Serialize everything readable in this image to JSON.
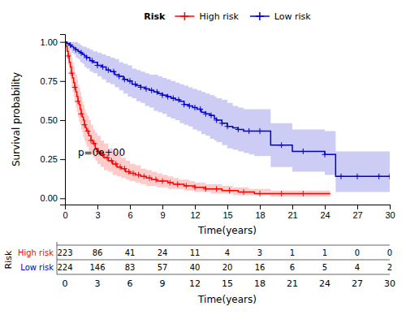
{
  "chart_data": {
    "type": "step",
    "x_label": "Time(years)",
    "y_label": "Survival probability",
    "xlim": [
      0,
      30
    ],
    "ylim": [
      -0.04,
      1.05
    ],
    "xticks": [
      0,
      3,
      6,
      9,
      12,
      15,
      18,
      21,
      24,
      27,
      30
    ],
    "yticks": [
      {
        "value": 0.0,
        "label": "0.00"
      },
      {
        "value": 0.25,
        "label": "0.25"
      },
      {
        "value": 0.5,
        "label": "0.50"
      },
      {
        "value": 0.75,
        "label": "0.75"
      },
      {
        "value": 1.0,
        "label": "1.00"
      }
    ],
    "grid": false,
    "legend": "top",
    "legend_title": "Risk",
    "series": [
      {
        "name": "High risk",
        "color": "#FF0000",
        "marker": "plus",
        "x": [
          0.0,
          0.1,
          0.2,
          0.3,
          0.4,
          0.5,
          0.6,
          0.7,
          0.8,
          0.9,
          1.0,
          1.1,
          1.2,
          1.3,
          1.4,
          1.5,
          1.6,
          1.7,
          1.8,
          1.9,
          2.0,
          2.2,
          2.4,
          2.6,
          2.8,
          3.0,
          3.3,
          3.6,
          4.0,
          4.4,
          4.8,
          5.2,
          5.6,
          6.0,
          6.5,
          7.0,
          7.5,
          8.0,
          8.5,
          9.0,
          9.5,
          10.0,
          10.5,
          11.0,
          11.5,
          12.0,
          12.5,
          13.0,
          13.5,
          14.0,
          14.5,
          15.0,
          15.5,
          16.0,
          16.5,
          17.0,
          17.5,
          18.0,
          19.0,
          20.0,
          21.0,
          22.0,
          23.0,
          24.0,
          24.5
        ],
        "values": [
          1.0,
          0.97,
          0.94,
          0.91,
          0.87,
          0.84,
          0.8,
          0.77,
          0.74,
          0.71,
          0.68,
          0.65,
          0.62,
          0.6,
          0.57,
          0.54,
          0.52,
          0.5,
          0.47,
          0.45,
          0.43,
          0.4,
          0.37,
          0.35,
          0.32,
          0.3,
          0.28,
          0.26,
          0.24,
          0.22,
          0.2,
          0.19,
          0.17,
          0.16,
          0.15,
          0.14,
          0.13,
          0.12,
          0.11,
          0.11,
          0.1,
          0.09,
          0.09,
          0.08,
          0.08,
          0.07,
          0.07,
          0.06,
          0.06,
          0.06,
          0.05,
          0.05,
          0.05,
          0.04,
          0.04,
          0.04,
          0.03,
          0.03,
          0.03,
          0.03,
          0.03,
          0.03,
          0.03,
          0.03,
          0.03
        ],
        "lower": [
          1.0,
          0.94,
          0.89,
          0.85,
          0.8,
          0.76,
          0.72,
          0.68,
          0.65,
          0.61,
          0.58,
          0.55,
          0.52,
          0.49,
          0.47,
          0.44,
          0.42,
          0.39,
          0.37,
          0.35,
          0.33,
          0.3,
          0.28,
          0.26,
          0.24,
          0.22,
          0.2,
          0.18,
          0.17,
          0.15,
          0.14,
          0.13,
          0.12,
          0.11,
          0.1,
          0.09,
          0.08,
          0.08,
          0.07,
          0.07,
          0.06,
          0.06,
          0.06,
          0.05,
          0.05,
          0.04,
          0.04,
          0.04,
          0.03,
          0.03,
          0.03,
          0.03,
          0.02,
          0.02,
          0.02,
          0.02,
          0.02,
          0.02,
          0.01,
          0.01,
          0.01,
          0.01,
          0.01,
          0.01,
          0.01
        ],
        "upper": [
          1.0,
          1.0,
          0.99,
          0.97,
          0.95,
          0.93,
          0.9,
          0.87,
          0.84,
          0.81,
          0.79,
          0.76,
          0.73,
          0.71,
          0.68,
          0.65,
          0.62,
          0.6,
          0.57,
          0.55,
          0.53,
          0.5,
          0.47,
          0.44,
          0.42,
          0.4,
          0.37,
          0.35,
          0.32,
          0.3,
          0.28,
          0.26,
          0.24,
          0.22,
          0.21,
          0.19,
          0.18,
          0.17,
          0.16,
          0.15,
          0.14,
          0.13,
          0.12,
          0.12,
          0.11,
          0.1,
          0.1,
          0.09,
          0.09,
          0.09,
          0.08,
          0.08,
          0.07,
          0.07,
          0.07,
          0.06,
          0.06,
          0.06,
          0.05,
          0.05,
          0.05,
          0.05,
          0.05,
          0.05,
          0.05
        ],
        "censor_x": [
          0.3,
          0.6,
          0.9,
          1.2,
          1.5,
          1.8,
          2.1,
          2.4,
          2.7,
          3.1,
          3.5,
          3.9,
          4.3,
          4.7,
          5.1,
          5.5,
          5.9,
          6.3,
          6.8,
          7.3,
          7.8,
          8.4,
          9.0,
          9.7,
          10.4,
          11.2,
          12.0,
          13.0,
          14.0,
          15.2,
          16.5,
          18.0,
          20.0,
          22.0
        ],
        "censor_y": [
          0.91,
          0.8,
          0.71,
          0.62,
          0.54,
          0.47,
          0.43,
          0.37,
          0.35,
          0.3,
          0.28,
          0.26,
          0.24,
          0.22,
          0.2,
          0.19,
          0.17,
          0.16,
          0.15,
          0.14,
          0.13,
          0.12,
          0.11,
          0.1,
          0.09,
          0.08,
          0.07,
          0.06,
          0.06,
          0.05,
          0.04,
          0.03,
          0.03,
          0.03
        ]
      },
      {
        "name": "Low risk",
        "color": "#0000CD",
        "marker": "plus",
        "x": [
          0.0,
          0.2,
          0.4,
          0.6,
          0.8,
          1.0,
          1.2,
          1.4,
          1.6,
          1.8,
          2.0,
          2.3,
          2.6,
          3.0,
          3.4,
          3.8,
          4.2,
          4.6,
          5.0,
          5.4,
          5.8,
          6.2,
          6.6,
          7.0,
          7.4,
          7.8,
          8.2,
          8.6,
          9.0,
          9.4,
          9.8,
          10.2,
          10.6,
          11.0,
          11.4,
          11.8,
          12.2,
          12.6,
          13.0,
          13.4,
          13.8,
          14.0,
          14.5,
          15.0,
          15.5,
          16.0,
          16.5,
          17.0,
          17.5,
          18.0,
          19.0,
          20.0,
          21.0,
          22.0,
          23.0,
          24.0,
          25.0,
          26.0,
          27.0,
          28.0,
          29.0,
          30.0
        ],
        "values": [
          1.0,
          0.99,
          0.98,
          0.97,
          0.96,
          0.95,
          0.94,
          0.93,
          0.92,
          0.91,
          0.9,
          0.88,
          0.87,
          0.85,
          0.84,
          0.82,
          0.81,
          0.79,
          0.78,
          0.76,
          0.75,
          0.73,
          0.72,
          0.71,
          0.7,
          0.69,
          0.68,
          0.67,
          0.66,
          0.65,
          0.64,
          0.63,
          0.62,
          0.6,
          0.59,
          0.58,
          0.57,
          0.55,
          0.54,
          0.53,
          0.51,
          0.5,
          0.48,
          0.46,
          0.45,
          0.44,
          0.43,
          0.43,
          0.43,
          0.43,
          0.34,
          0.34,
          0.3,
          0.3,
          0.3,
          0.28,
          0.14,
          0.14,
          0.14,
          0.14,
          0.14,
          0.14
        ],
        "lower": [
          1.0,
          0.97,
          0.95,
          0.93,
          0.92,
          0.9,
          0.89,
          0.87,
          0.86,
          0.84,
          0.83,
          0.81,
          0.8,
          0.78,
          0.76,
          0.74,
          0.73,
          0.71,
          0.69,
          0.67,
          0.65,
          0.64,
          0.62,
          0.61,
          0.59,
          0.58,
          0.56,
          0.55,
          0.54,
          0.52,
          0.51,
          0.5,
          0.48,
          0.47,
          0.46,
          0.44,
          0.43,
          0.41,
          0.4,
          0.38,
          0.37,
          0.36,
          0.34,
          0.32,
          0.31,
          0.3,
          0.29,
          0.28,
          0.27,
          0.27,
          0.2,
          0.2,
          0.17,
          0.17,
          0.17,
          0.15,
          0.04,
          0.04,
          0.04,
          0.04,
          0.04,
          0.04
        ],
        "upper": [
          1.0,
          1.0,
          1.0,
          1.0,
          1.0,
          1.0,
          0.99,
          0.98,
          0.97,
          0.97,
          0.96,
          0.95,
          0.94,
          0.93,
          0.92,
          0.91,
          0.9,
          0.89,
          0.87,
          0.86,
          0.85,
          0.83,
          0.82,
          0.81,
          0.8,
          0.79,
          0.79,
          0.78,
          0.77,
          0.76,
          0.75,
          0.74,
          0.73,
          0.72,
          0.71,
          0.7,
          0.69,
          0.68,
          0.67,
          0.66,
          0.65,
          0.64,
          0.63,
          0.61,
          0.59,
          0.58,
          0.57,
          0.57,
          0.57,
          0.57,
          0.48,
          0.48,
          0.44,
          0.44,
          0.44,
          0.43,
          0.3,
          0.3,
          0.3,
          0.3,
          0.3,
          0.3
        ],
        "censor_x": [
          0.5,
          1.0,
          1.5,
          2.0,
          2.5,
          3.0,
          3.5,
          4.0,
          4.5,
          5.0,
          5.5,
          6.0,
          6.5,
          7.0,
          7.5,
          8.0,
          8.5,
          9.0,
          9.5,
          10.0,
          10.5,
          11.0,
          11.5,
          12.0,
          12.5,
          13.0,
          13.5,
          14.0,
          14.5,
          15.0,
          16.0,
          17.0,
          18.0,
          20.0,
          22.0,
          24.0,
          25.5,
          27.0,
          29.0,
          30.0
        ],
        "censor_y": [
          0.98,
          0.95,
          0.93,
          0.9,
          0.88,
          0.85,
          0.84,
          0.82,
          0.81,
          0.78,
          0.76,
          0.75,
          0.73,
          0.71,
          0.7,
          0.69,
          0.68,
          0.66,
          0.65,
          0.64,
          0.63,
          0.6,
          0.59,
          0.58,
          0.57,
          0.54,
          0.53,
          0.5,
          0.48,
          0.46,
          0.44,
          0.43,
          0.43,
          0.34,
          0.3,
          0.28,
          0.14,
          0.14,
          0.14,
          0.14
        ]
      }
    ],
    "annotations": [
      {
        "text": "p=0e+00",
        "x": 1.2,
        "y": 0.27
      }
    ],
    "at_risk": {
      "title": "Risk",
      "times": [
        0,
        3,
        6,
        9,
        12,
        15,
        18,
        21,
        24,
        27,
        30
      ],
      "counts": [
        [
          223,
          86,
          41,
          24,
          11,
          4,
          3,
          1,
          1,
          0,
          0
        ],
        [
          224,
          146,
          83,
          57,
          40,
          20,
          16,
          6,
          5,
          4,
          2
        ]
      ]
    }
  }
}
